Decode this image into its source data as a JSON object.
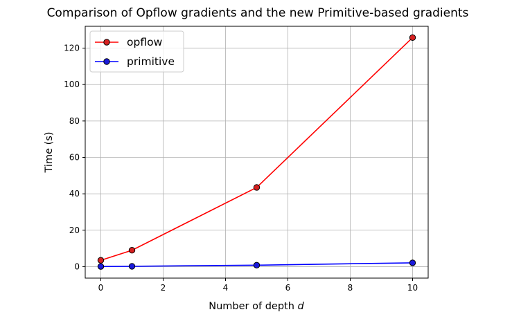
{
  "chart_data": {
    "type": "line",
    "title": "Comparison of Opflow gradients and the new Primitive-based gradients",
    "xlabel": "Number of depth",
    "xlabel_italic": "d",
    "ylabel": "Time (s)",
    "xlim": [
      -0.5,
      10.5
    ],
    "ylim": [
      -6.3,
      132.0
    ],
    "xticks": [
      0,
      2,
      4,
      6,
      8,
      10
    ],
    "yticks": [
      0,
      20,
      40,
      60,
      80,
      100,
      120
    ],
    "grid": true,
    "legend_position": "upper-left",
    "series": [
      {
        "name": "opflow",
        "color": "#ff0000",
        "marker_color": "#d62020",
        "x": [
          0,
          1,
          5,
          10
        ],
        "y": [
          3.5,
          9.0,
          43.5,
          125.8
        ]
      },
      {
        "name": "primitive",
        "color": "#0000ff",
        "marker_color": "#1a1adb",
        "x": [
          0,
          1,
          5,
          10
        ],
        "y": [
          0.1,
          0.2,
          0.8,
          2.1
        ]
      }
    ]
  }
}
